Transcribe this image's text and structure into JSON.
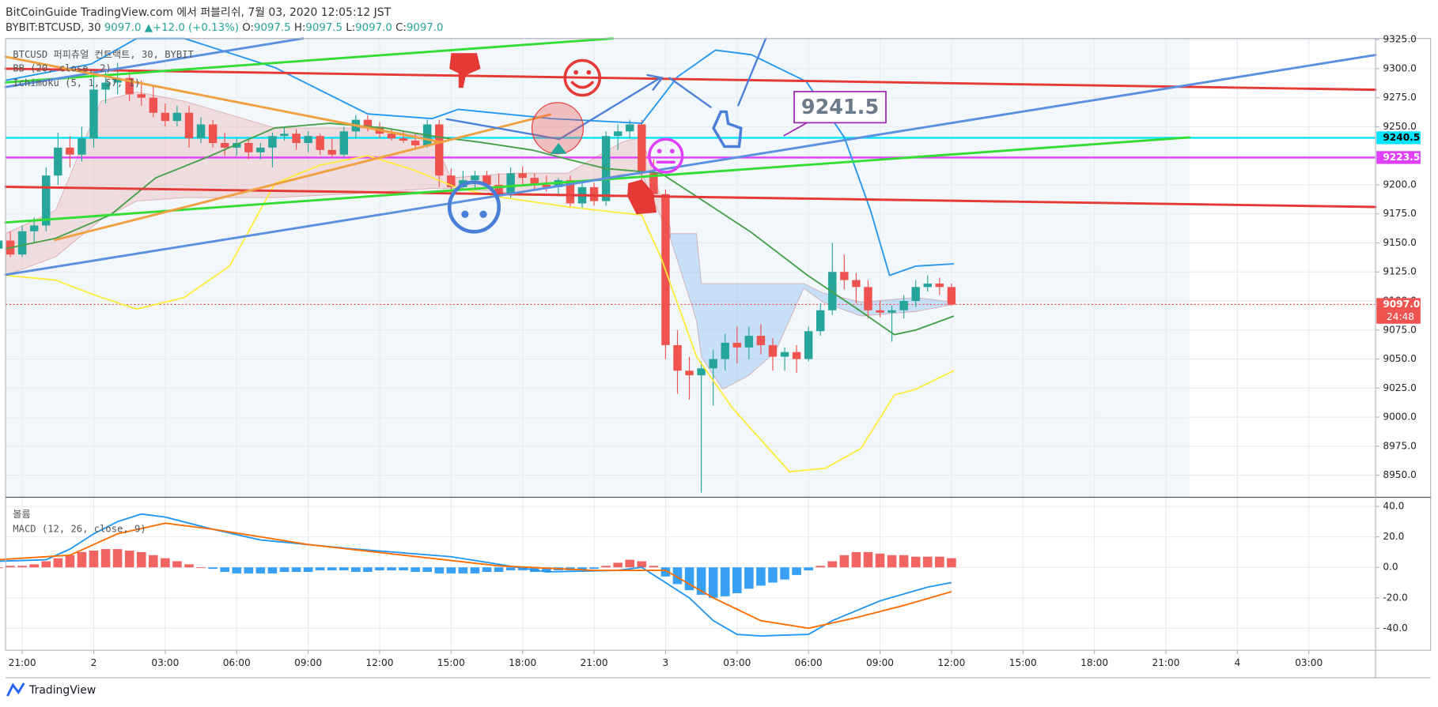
{
  "header": {
    "title": "BitCoinGuide TradingView.com 에서 퍼블리쉬, 7월 03, 2020 12:05:12 JST",
    "symbol": "BYBIT:BTCUSD, 30",
    "price": "9097.0",
    "change": "▲+12.0 (+0.13%)",
    "ohlc": [
      {
        "label": "O:",
        "value": "9097.5"
      },
      {
        "label": "H:",
        "value": "9097.5"
      },
      {
        "label": "L:",
        "value": "9097.0"
      },
      {
        "label": "C:",
        "value": "9097.0"
      }
    ]
  },
  "branding": "TradingView",
  "chart_data": [
    {
      "type": "candlestick",
      "legend": [
        "BTCUSD 퍼피츄얼 컨트랙트, 30, BYBIT",
        "BB (20, close, 2)",
        "Ichimoku (5, 1, 57, 1)"
      ],
      "x": [
        -1,
        -0.5,
        0,
        0.5,
        1,
        1.5,
        2,
        2.5,
        3,
        3.5,
        4,
        4.5,
        5,
        5.5,
        6,
        6.5,
        7,
        7.5,
        8,
        8.5,
        9,
        9.5,
        10,
        10.5,
        11,
        11.5,
        12,
        12.5,
        13,
        13.5,
        14,
        14.5,
        15,
        15.5,
        16,
        16.5,
        17,
        17.5,
        18,
        18.5,
        19,
        19.5,
        20,
        20.5,
        21,
        21.5,
        22,
        22.5,
        23,
        23.5,
        24,
        24.5,
        25,
        25.5,
        26,
        26.5,
        27,
        27.5,
        28,
        28.5,
        29,
        29.5,
        30,
        30.5,
        31,
        31.5,
        32,
        32.5,
        33,
        33.5,
        34,
        34.5,
        35,
        35.5,
        36,
        36.5,
        37,
        37.5,
        38,
        38.5,
        39
      ],
      "open": [
        9145,
        9152,
        9140,
        9160,
        9165,
        9208,
        9232,
        9226,
        9240,
        9282,
        9288,
        9292,
        9278,
        9275,
        9262,
        9255,
        9262,
        9240,
        9252,
        9236,
        9232,
        9236,
        9228,
        9232,
        9242,
        9244,
        9236,
        9242,
        9230,
        9226,
        9246,
        9256,
        9250,
        9244,
        9240,
        9238,
        9234,
        9252,
        9208,
        9198,
        9204,
        9208,
        9200,
        9192,
        9210,
        9206,
        9200,
        9198,
        9204,
        9184,
        9198,
        9186,
        9242,
        9246,
        9252,
        9210,
        9192,
        9062,
        9040,
        9036,
        9042,
        9050,
        9064,
        9060,
        9070,
        9062,
        9052,
        9056,
        9050,
        9074,
        9092,
        9125,
        9118,
        9112,
        9092,
        9090,
        9092,
        9100,
        9112,
        9115,
        9112
      ],
      "high": [
        9155,
        9160,
        9165,
        9172,
        9215,
        9245,
        9242,
        9250,
        9300,
        9300,
        9305,
        9298,
        9290,
        9285,
        9270,
        9268,
        9268,
        9258,
        9256,
        9245,
        9240,
        9240,
        9236,
        9245,
        9250,
        9248,
        9246,
        9244,
        9240,
        9250,
        9260,
        9260,
        9254,
        9248,
        9246,
        9244,
        9256,
        9256,
        9214,
        9212,
        9212,
        9212,
        9210,
        9215,
        9216,
        9210,
        9208,
        9206,
        9208,
        9204,
        9202,
        9246,
        9252,
        9256,
        9256,
        9222,
        9196,
        9075,
        9052,
        9048,
        9058,
        9072,
        9078,
        9078,
        9080,
        9068,
        9060,
        9062,
        9078,
        9098,
        9150,
        9140,
        9124,
        9118,
        9100,
        9096,
        9105,
        9118,
        9122,
        9120,
        9115
      ],
      "low": [
        9135,
        9138,
        9138,
        9150,
        9160,
        9200,
        9215,
        9220,
        9232,
        9270,
        9278,
        9272,
        9268,
        9258,
        9250,
        9250,
        9232,
        9236,
        9232,
        9225,
        9225,
        9222,
        9222,
        9215,
        9238,
        9230,
        9228,
        9226,
        9224,
        9224,
        9240,
        9246,
        9240,
        9238,
        9236,
        9230,
        9232,
        9198,
        9192,
        9195,
        9196,
        9198,
        9180,
        9188,
        9200,
        9196,
        9194,
        9190,
        9180,
        9180,
        9182,
        9182,
        9230,
        9240,
        9200,
        9185,
        9050,
        9020,
        9015,
        8935,
        9010,
        9040,
        9046,
        9050,
        9054,
        9040,
        9040,
        9038,
        9048,
        9070,
        9088,
        9110,
        9098,
        9085,
        9086,
        9065,
        9085,
        9095,
        9108,
        9105,
        9096
      ],
      "close": [
        9152,
        9140,
        9160,
        9165,
        9208,
        9232,
        9226,
        9240,
        9282,
        9288,
        9292,
        9278,
        9275,
        9262,
        9255,
        9262,
        9240,
        9252,
        9236,
        9232,
        9236,
        9228,
        9232,
        9242,
        9244,
        9236,
        9242,
        9230,
        9226,
        9246,
        9256,
        9250,
        9244,
        9240,
        9238,
        9234,
        9252,
        9208,
        9198,
        9204,
        9208,
        9200,
        9192,
        9210,
        9206,
        9200,
        9198,
        9204,
        9184,
        9198,
        9186,
        9242,
        9246,
        9252,
        9210,
        9192,
        9062,
        9040,
        9036,
        9042,
        9050,
        9064,
        9060,
        9070,
        9062,
        9052,
        9056,
        9050,
        9074,
        9092,
        9125,
        9118,
        9112,
        9092,
        9090,
        9092,
        9100,
        9112,
        9115,
        9112,
        9097
      ],
      "up_color": "#26a69a",
      "down_color": "#ef5350",
      "clouds": [
        {
          "color": "rgba(232,150,150,0.28)",
          "x": [
            -0.7,
            1.4,
            3.3,
            4.8,
            6.8,
            10.6,
            14.5,
            17.2,
            18,
            20.6,
            22.9,
            25.2,
            26,
            27.2
          ],
          "upper": [
            9158,
            9178,
            9272,
            9280,
            9272,
            9249,
            9249,
            9241,
            9206,
            9210,
            9210,
            9237,
            9241,
            9163
          ],
          "lower": [
            9122,
            9138,
            9170,
            9186,
            9189,
            9189,
            9193,
            9197,
            9197,
            9193,
            9201,
            9209,
            9209,
            9154
          ]
        },
        {
          "color": "rgba(100,170,240,0.3)",
          "x": [
            27.2,
            28.3,
            28.5,
            29.4,
            30.5,
            31.6,
            32.8,
            33.6,
            35.2,
            37.5,
            39.1
          ],
          "upper": [
            9158,
            9158,
            9115,
            9115,
            9115,
            9115,
            9115,
            9107,
            9099,
            9103,
            9099
          ],
          "lower": [
            9154,
            9083,
            9052,
            9024,
            9036,
            9056,
            9111,
            9099,
            9087,
            9091,
            9097
          ]
        }
      ],
      "lines": [
        {
          "color": "#2196f3",
          "x": [
            -0.7,
            2.9,
            4.8,
            6.8,
            10.6,
            14.5,
            17.2,
            18.3,
            22.2,
            26,
            27.5,
            29.1,
            30.6,
            32.9,
            34.5,
            35.6,
            36.4,
            37.5,
            39.1
          ],
          "values": [
            9290,
            9304,
            9326,
            9326,
            9301,
            9261,
            9257,
            9265,
            9257,
            9253,
            9293,
            9316,
            9312,
            9289,
            9241,
            9178,
            9122,
            9130,
            9132
          ]
        },
        {
          "color": "#ffeb3b",
          "x": [
            -0.7,
            1.4,
            2.9,
            4.8,
            6.8,
            8.7,
            10.6,
            12.5,
            14.5,
            16.4,
            18.3,
            20.2,
            22.9,
            26,
            26.8,
            28.3,
            29.8,
            32.2,
            33.7,
            35.2,
            36.6,
            37.5,
            39.1
          ],
          "values": [
            9122,
            9118,
            9106,
            9093,
            9103,
            9130,
            9201,
            9217,
            9225,
            9213,
            9197,
            9189,
            9181,
            9174,
            9138,
            9052,
            9008,
            8953,
            8956,
            8973,
            9019,
            9024,
            9040
          ]
        },
        {
          "color": "#43a047",
          "x": [
            -0.7,
            1.4,
            3.7,
            5.6,
            7.9,
            10.6,
            12.9,
            15.2,
            17.5,
            19.1,
            21.4,
            22.9,
            24.5,
            26.8,
            28.3,
            30.6,
            32.9,
            35.2,
            36.6,
            37.5,
            39.1
          ],
          "values": [
            9145,
            9154,
            9174,
            9206,
            9225,
            9249,
            9253,
            9249,
            9241,
            9237,
            9230,
            9222,
            9214,
            9210,
            9190,
            9159,
            9123,
            9091,
            9071,
            9075,
            9087
          ]
        }
      ],
      "levels": [
        {
          "value": 9240.5,
          "label": "9240.5",
          "color": "#00e5ff",
          "text_color": "#000000",
          "style": "solid"
        },
        {
          "value": 9223.5,
          "label": "9223.5",
          "color": "#e040fb",
          "text_color": "#ffffff",
          "style": "solid"
        },
        {
          "value": 9097,
          "label": "9097.0",
          "color": "#ef5350",
          "text_color": "#ffffff",
          "style": "dotted"
        }
      ],
      "countdown": "24:48",
      "annotation": 9241.5,
      "xlim": [
        -0.7,
        56.8
      ],
      "ylim": [
        8931,
        9326
      ],
      "yticks": [
        {
          "value": 8950,
          "label": "8950.0"
        },
        {
          "value": 8975,
          "label": "8975.0"
        },
        {
          "value": 9000,
          "label": "9000.0"
        },
        {
          "value": 9025,
          "label": "9025.0"
        },
        {
          "value": 9050,
          "label": "9050.0"
        },
        {
          "value": 9075,
          "label": "9075.0"
        },
        {
          "value": 9100,
          "label": "9100.0"
        },
        {
          "value": 9125,
          "label": "9125.0"
        },
        {
          "value": 9150,
          "label": "9150.0"
        },
        {
          "value": 9175,
          "label": "9175.0"
        },
        {
          "value": 9200,
          "label": "9200.0"
        },
        {
          "value": 9225,
          "label": "9225.0"
        },
        {
          "value": 9250,
          "label": "9250.0"
        },
        {
          "value": 9275,
          "label": "9275.0"
        },
        {
          "value": 9300,
          "label": "9300.0"
        },
        {
          "value": 9325,
          "label": "9325.0"
        }
      ],
      "xticks": [
        {
          "value": 0,
          "label": "21:00"
        },
        {
          "value": 3,
          "label": "2"
        },
        {
          "value": 6,
          "label": "03:00"
        },
        {
          "value": 9,
          "label": "06:00"
        },
        {
          "value": 12,
          "label": "09:00"
        },
        {
          "value": 15,
          "label": "12:00"
        },
        {
          "value": 18,
          "label": "15:00"
        },
        {
          "value": 21,
          "label": "18:00"
        },
        {
          "value": 24,
          "label": "21:00"
        },
        {
          "value": 27,
          "label": "3"
        },
        {
          "value": 30,
          "label": "03:00"
        },
        {
          "value": 33,
          "label": "06:00"
        },
        {
          "value": 36,
          "label": "09:00"
        },
        {
          "value": 39,
          "label": "12:00"
        },
        {
          "value": 42,
          "label": "15:00"
        },
        {
          "value": 45,
          "label": "18:00"
        },
        {
          "value": 48,
          "label": "21:00"
        },
        {
          "value": 51,
          "label": "4"
        },
        {
          "value": 54,
          "label": "03:00"
        }
      ],
      "grid": true
    },
    {
      "type": "macd",
      "legend": [
        "볼륨",
        "MACD (12, 26, close, 9)"
      ],
      "x": [
        -1,
        -0.5,
        0,
        0.5,
        1,
        1.5,
        2,
        2.5,
        3,
        3.5,
        4,
        4.5,
        5,
        5.5,
        6,
        6.5,
        7,
        7.5,
        8,
        8.5,
        9,
        9.5,
        10,
        10.5,
        11,
        11.5,
        12,
        12.5,
        13,
        13.5,
        14,
        14.5,
        15,
        15.5,
        16,
        16.5,
        17,
        17.5,
        18,
        18.5,
        19,
        19.5,
        20,
        20.5,
        21,
        21.5,
        22,
        22.5,
        23,
        23.5,
        24,
        24.5,
        25,
        25.5,
        26,
        26.5,
        27,
        27.5,
        28,
        28.5,
        29,
        29.5,
        30,
        30.5,
        31,
        31.5,
        32,
        32.5,
        33,
        33.5,
        34,
        34.5,
        35,
        35.5,
        36,
        36.5,
        37,
        37.5,
        38,
        38.5,
        39
      ],
      "histogram": [
        0,
        1,
        1,
        2,
        4,
        6,
        8,
        10,
        11,
        12,
        12,
        11,
        10,
        8,
        6,
        4,
        2,
        0,
        -1,
        -3,
        -4,
        -4,
        -4,
        -4,
        -3,
        -3,
        -3,
        -2,
        -2,
        -2,
        -3,
        -3,
        -2,
        -2,
        -2,
        -3,
        -3,
        -4,
        -4,
        -4,
        -4,
        -3,
        -3,
        -2,
        -2,
        -3,
        -3,
        -2,
        -2,
        -2,
        -1,
        1,
        3,
        5,
        4,
        1,
        -6,
        -11,
        -15,
        -18,
        -20,
        -19,
        -17,
        -14,
        -12,
        -10,
        -8,
        -5,
        -2,
        1,
        4,
        8,
        10,
        10,
        9,
        8,
        8,
        7,
        7,
        7,
        6
      ],
      "positive_color": "#ef5350",
      "negative_color": "#2196f3",
      "lines": [
        {
          "color": "#2196f3",
          "x": [
            -1,
            1,
            2,
            3,
            4,
            5,
            6,
            8,
            10,
            14,
            18,
            22,
            25,
            26,
            28,
            29,
            30,
            31,
            33,
            34,
            36,
            38,
            39
          ],
          "values": [
            4,
            5,
            12,
            22,
            30,
            35,
            33,
            25,
            18,
            12,
            7,
            -3,
            -2,
            0,
            -20,
            -35,
            -44,
            -45,
            -44,
            -35,
            -22,
            -13,
            -10
          ]
        },
        {
          "color": "#ff6d00",
          "x": [
            -1,
            2,
            4,
            6,
            8,
            12,
            16,
            20,
            24,
            27,
            29,
            31,
            33,
            35,
            37,
            39
          ],
          "values": [
            5,
            8,
            22,
            29,
            25,
            15,
            8,
            1,
            -2,
            -2,
            -20,
            -35,
            -40,
            -33,
            -25,
            -16
          ]
        }
      ],
      "xlim": [
        -0.7,
        56.8
      ],
      "ylim": [
        -54.4,
        46
      ],
      "yticks": [
        {
          "value": 40,
          "label": "40.0"
        },
        {
          "value": 20,
          "label": "20.0"
        },
        {
          "value": 0,
          "label": "0.0"
        },
        {
          "value": -20,
          "label": "-20.0"
        },
        {
          "value": -40,
          "label": "-40.0"
        }
      ],
      "grid": true
    }
  ]
}
